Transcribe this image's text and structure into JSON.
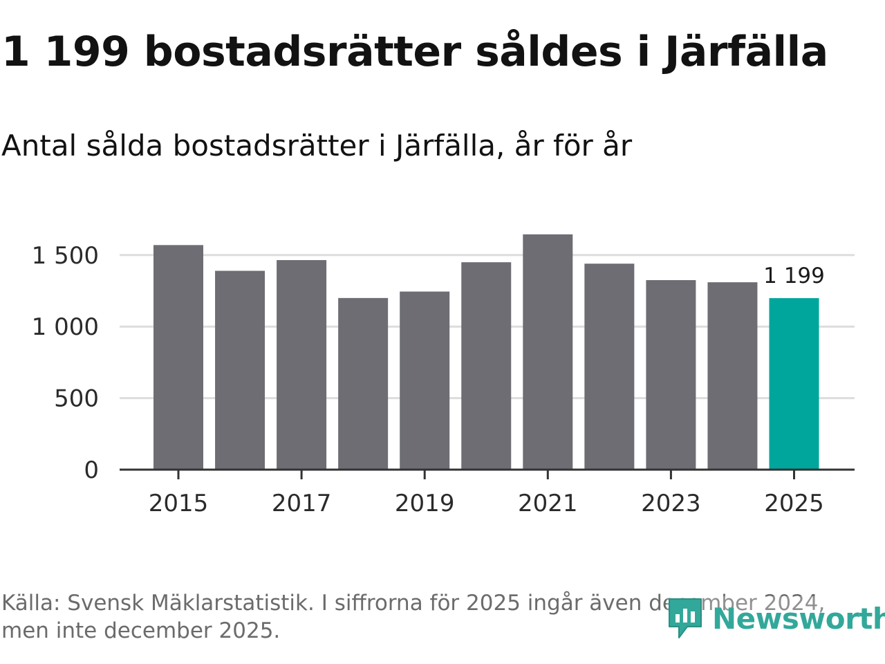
{
  "header": {
    "title": "1 199 bostadsrätter såldes i Järfälla",
    "subtitle": "Antal sålda bostadsrätter i Järfälla, år för år"
  },
  "footer": {
    "source": "Källa: Svensk Mäklarstatistik. I siffrorna för 2025 ingår även december 2024, men inte december 2025.",
    "logo_text": "Newsworthy"
  },
  "colors": {
    "bar": "#6e6d74",
    "highlight": "#00a69c",
    "grid": "#dddddd",
    "axis": "#333333",
    "logo": "#32a89a"
  },
  "chart_data": {
    "type": "bar",
    "title": "Antal sålda bostadsrätter i Järfälla, år för år",
    "categories": [
      "2015",
      "2016",
      "2017",
      "2018",
      "2019",
      "2020",
      "2021",
      "2022",
      "2023",
      "2024",
      "2025"
    ],
    "values": [
      1570,
      1390,
      1465,
      1200,
      1245,
      1450,
      1645,
      1440,
      1325,
      1310,
      1199
    ],
    "highlight_index": 10,
    "data_labels": [
      {
        "index": 10,
        "text": "1 199"
      }
    ],
    "ylim": [
      0,
      1700
    ],
    "yticks": [
      0,
      500,
      1000,
      1500
    ],
    "ytick_labels": [
      "0",
      "500",
      "1 000",
      "1 500"
    ],
    "xtick_labels": [
      "2015",
      "2017",
      "2019",
      "2021",
      "2023",
      "2025"
    ],
    "xlabel": "",
    "ylabel": "",
    "grid": true
  }
}
